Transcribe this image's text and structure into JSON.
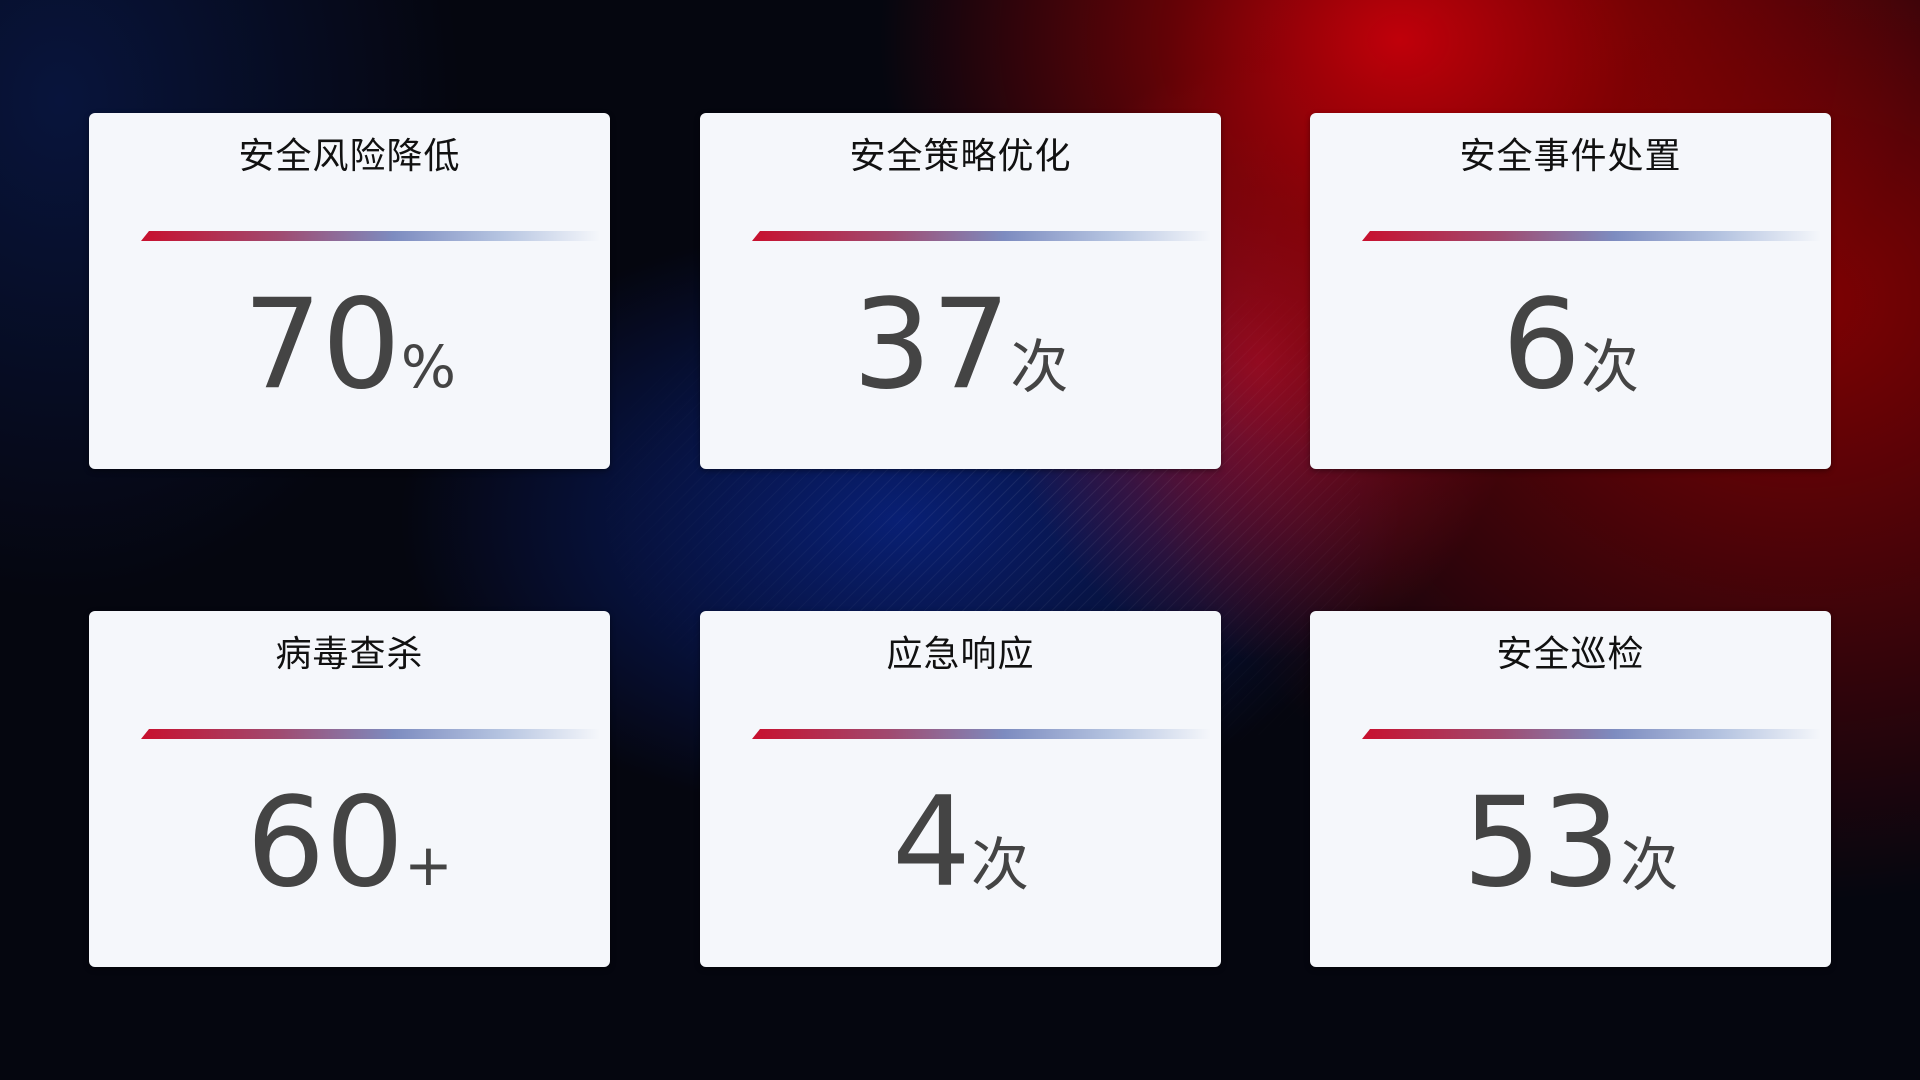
{
  "cards": [
    {
      "title": "安全风险降低",
      "value": "70",
      "unit": "%"
    },
    {
      "title": "安全策略优化",
      "value": "37",
      "unit": "次"
    },
    {
      "title": "安全事件处置",
      "value": "6",
      "unit": "次"
    },
    {
      "title": "病毒查杀",
      "value": "60",
      "unit": "+"
    },
    {
      "title": "应急响应",
      "value": "4",
      "unit": "次"
    },
    {
      "title": "安全巡检",
      "value": "53",
      "unit": "次"
    }
  ],
  "colors": {
    "accent_red": "#c8102e",
    "accent_blue": "#7d8cc0",
    "card_bg": "#f5f7fb",
    "value_text": "#444444"
  }
}
